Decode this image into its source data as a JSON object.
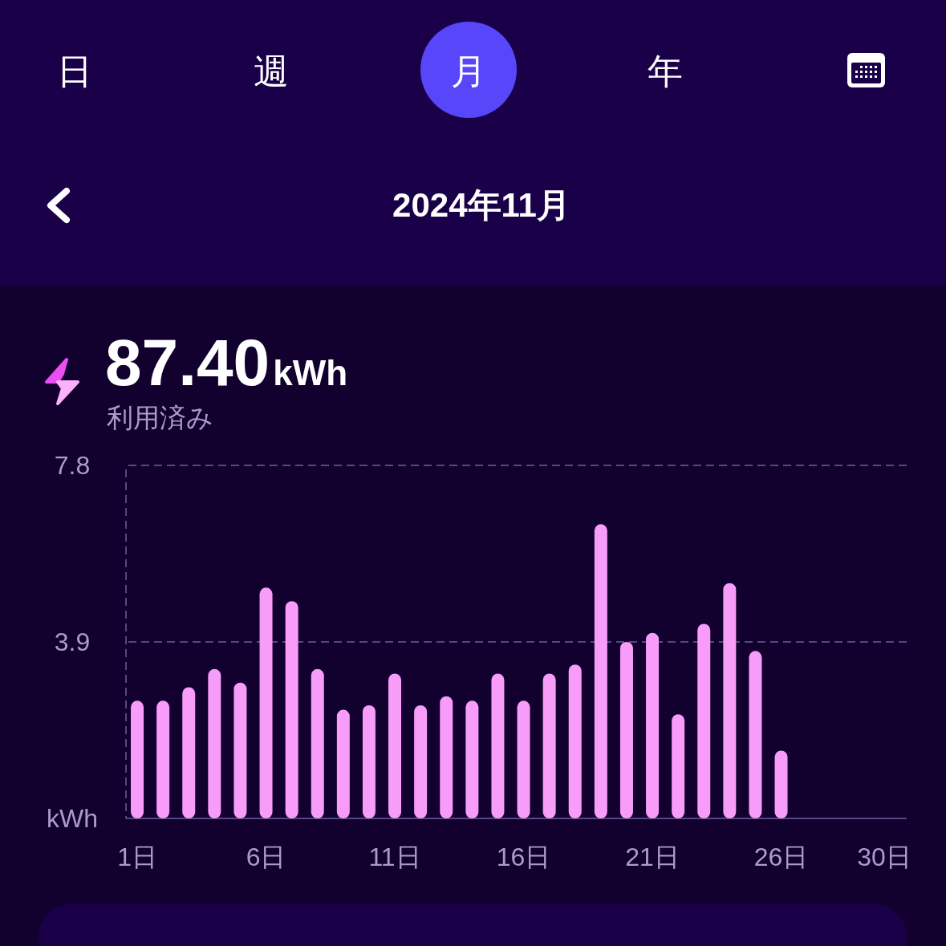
{
  "chart_data": {
    "type": "bar",
    "title": "2024年11月",
    "annotations": [
      "日",
      "週",
      "月",
      "年",
      "87.40",
      "kWh",
      "利用済み"
    ],
    "categories": [
      "1日",
      null,
      null,
      null,
      null,
      "6日",
      null,
      null,
      null,
      null,
      "11日",
      null,
      null,
      null,
      null,
      "16日",
      null,
      null,
      null,
      null,
      "21日",
      null,
      null,
      null,
      null,
      "26日",
      null,
      null,
      null,
      "30日"
    ],
    "values": [
      2.6,
      2.6,
      2.9,
      3.3,
      3.0,
      5.1,
      4.8,
      3.3,
      2.4,
      2.5,
      3.2,
      2.5,
      2.7,
      2.6,
      3.2,
      2.6,
      3.2,
      3.4,
      6.5,
      3.9,
      4.1,
      2.3,
      4.3,
      5.2,
      3.7,
      1.5,
      null,
      null,
      null,
      null
    ],
    "color": "#f89cfa",
    "ylim": [
      0,
      7.8
    ],
    "yticks": [
      {
        "value": 0,
        "label": "kWh"
      },
      3.9,
      7.8
    ],
    "grid": "y"
  }
}
